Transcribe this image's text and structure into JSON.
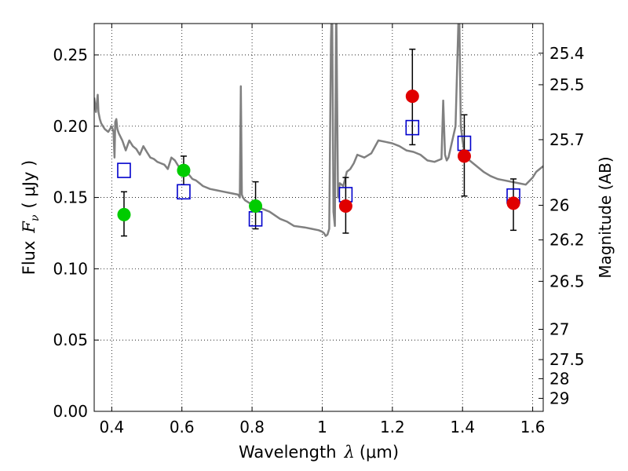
{
  "chart_data": {
    "type": "scatter",
    "title": "",
    "xlabel": "Wavelength",
    "xlabel_symbol": "λ",
    "xlabel_unit": "(μm)",
    "ylabel": "Flux",
    "ylabel_symbol": "F",
    "ylabel_sub": "ν",
    "ylabel_unit": "( μJy )",
    "y2label": "Magnitude (AB)",
    "xlim": [
      0.35,
      1.63
    ],
    "ylim": [
      0.0,
      0.272
    ],
    "grid": "dotted",
    "x_ticks": [
      {
        "value": 0.4,
        "label": "0.4"
      },
      {
        "value": 0.6,
        "label": "0.6"
      },
      {
        "value": 0.8,
        "label": "0.8"
      },
      {
        "value": 1.0,
        "label": "1"
      },
      {
        "value": 1.2,
        "label": "1.2"
      },
      {
        "value": 1.4,
        "label": "1.4"
      },
      {
        "value": 1.6,
        "label": "1.6"
      }
    ],
    "y_ticks": [
      {
        "value": 0.0,
        "label": "0.00"
      },
      {
        "value": 0.05,
        "label": "0.05"
      },
      {
        "value": 0.1,
        "label": "0.10"
      },
      {
        "value": 0.15,
        "label": "0.15"
      },
      {
        "value": 0.2,
        "label": "0.20"
      },
      {
        "value": 0.25,
        "label": "0.25"
      }
    ],
    "y2_ticks": [
      {
        "value": 25.4,
        "label": "25.4"
      },
      {
        "value": 25.5,
        "label": "25.5"
      },
      {
        "value": 25.7,
        "label": "25.7"
      },
      {
        "value": 26.0,
        "label": "26"
      },
      {
        "value": 26.2,
        "label": "26.2"
      },
      {
        "value": 26.5,
        "label": "26.5"
      },
      {
        "value": 27.0,
        "label": "27"
      },
      {
        "value": 27.5,
        "label": "27.5"
      },
      {
        "value": 28.0,
        "label": "28"
      },
      {
        "value": 29.0,
        "label": "29"
      }
    ],
    "series": [
      {
        "name": "model spectrum",
        "kind": "line",
        "color": "#808080",
        "x": [
          0.35,
          0.355,
          0.36,
          0.362,
          0.366,
          0.37,
          0.375,
          0.38,
          0.39,
          0.4,
          0.405,
          0.408,
          0.41,
          0.413,
          0.416,
          0.42,
          0.43,
          0.44,
          0.45,
          0.46,
          0.47,
          0.48,
          0.49,
          0.5,
          0.51,
          0.52,
          0.53,
          0.54,
          0.55,
          0.56,
          0.57,
          0.58,
          0.59,
          0.6,
          0.61,
          0.62,
          0.63,
          0.64,
          0.65,
          0.66,
          0.68,
          0.7,
          0.72,
          0.74,
          0.76,
          0.765,
          0.768,
          0.771,
          0.774,
          0.78,
          0.8,
          0.82,
          0.85,
          0.88,
          0.9,
          0.92,
          0.95,
          0.97,
          0.99,
          1.0,
          1.005,
          1.01,
          1.015,
          1.02,
          1.025,
          1.028,
          1.032,
          1.036,
          1.04,
          1.045,
          1.05,
          1.06,
          1.07,
          1.08,
          1.09,
          1.1,
          1.12,
          1.14,
          1.16,
          1.18,
          1.2,
          1.22,
          1.24,
          1.26,
          1.28,
          1.3,
          1.32,
          1.34,
          1.345,
          1.35,
          1.355,
          1.36,
          1.38,
          1.39,
          1.395,
          1.4,
          1.405,
          1.41,
          1.42,
          1.44,
          1.46,
          1.48,
          1.5,
          1.52,
          1.54,
          1.56,
          1.58,
          1.6,
          1.61,
          1.63
        ],
        "y": [
          0.22,
          0.21,
          0.222,
          0.21,
          0.205,
          0.202,
          0.2,
          0.198,
          0.196,
          0.2,
          0.196,
          0.178,
          0.203,
          0.205,
          0.198,
          0.195,
          0.19,
          0.183,
          0.19,
          0.186,
          0.184,
          0.18,
          0.186,
          0.182,
          0.178,
          0.177,
          0.175,
          0.174,
          0.173,
          0.17,
          0.178,
          0.176,
          0.172,
          0.17,
          0.168,
          0.166,
          0.163,
          0.162,
          0.16,
          0.158,
          0.156,
          0.155,
          0.154,
          0.153,
          0.152,
          0.15,
          0.228,
          0.152,
          0.15,
          0.148,
          0.145,
          0.143,
          0.14,
          0.135,
          0.133,
          0.13,
          0.129,
          0.128,
          0.127,
          0.126,
          0.125,
          0.123,
          0.124,
          0.128,
          0.26,
          0.29,
          0.14,
          0.13,
          0.29,
          0.15,
          0.16,
          0.158,
          0.168,
          0.17,
          0.174,
          0.18,
          0.178,
          0.181,
          0.19,
          0.189,
          0.188,
          0.186,
          0.183,
          0.182,
          0.18,
          0.176,
          0.175,
          0.177,
          0.218,
          0.18,
          0.176,
          0.178,
          0.2,
          0.29,
          0.2,
          0.19,
          0.182,
          0.178,
          0.176,
          0.172,
          0.168,
          0.165,
          0.163,
          0.162,
          0.161,
          0.16,
          0.159,
          0.164,
          0.168,
          0.172
        ]
      },
      {
        "name": "model photometry",
        "kind": "open-square",
        "color": "#0000cc",
        "x": [
          0.435,
          0.605,
          0.81,
          1.067,
          1.257,
          1.405,
          1.545
        ],
        "y": [
          0.169,
          0.154,
          0.135,
          0.152,
          0.199,
          0.188,
          0.151
        ]
      },
      {
        "name": "optical detections",
        "kind": "filled-circle",
        "color": "#00cc00",
        "x": [
          0.435,
          0.605,
          0.81
        ],
        "y": [
          0.138,
          0.169,
          0.144
        ],
        "yerr_low": [
          0.123,
          0.159,
          0.128
        ],
        "yerr_high": [
          0.154,
          0.179,
          0.161
        ]
      },
      {
        "name": "near-IR detections",
        "kind": "filled-circle",
        "color": "#e00000",
        "x": [
          1.067,
          1.257,
          1.405,
          1.545
        ],
        "y": [
          0.144,
          0.221,
          0.179,
          0.146
        ],
        "yerr_low": [
          0.125,
          0.187,
          0.151,
          0.127
        ],
        "yerr_high": [
          0.164,
          0.254,
          0.208,
          0.163
        ]
      }
    ]
  }
}
